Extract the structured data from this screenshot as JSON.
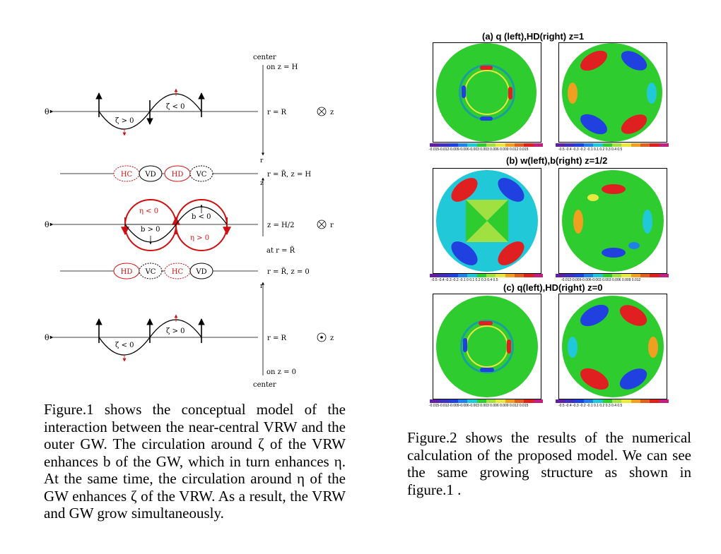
{
  "figure1": {
    "labels": {
      "center_top": "center",
      "on_z_H": "on z = H",
      "theta": "θ",
      "r_eq_R": "r = R",
      "z_axis": "z",
      "r_axis": "r",
      "zeta_pos": "ζ > 0",
      "zeta_neg": "ζ < 0",
      "r_Rt_z_H": "r = R̃, z = H",
      "r_Rt_z_0": "r = R̃, z = 0",
      "z_H2": "z = H/2",
      "at_r_Rt": "at r = R̃",
      "eta_neg": "η < 0",
      "eta_pos": "η > 0",
      "b_pos": "b > 0",
      "b_neg": "b < 0",
      "on_z_0": "on z = 0",
      "center_bottom": "center",
      "HC": "HC",
      "VD": "VD",
      "HD": "HD",
      "VC": "VC"
    }
  },
  "figure2": {
    "panel_a_title": "(a)  q  (left),HD(right)   z=1",
    "panel_b_title": "(b)  w(left),b(right)  z=1/2",
    "panel_c_title": "(c)  q(left),HD(right)  z=0",
    "ticks_q": "-0.015-0.012-0.009-0.006-0.003 0.003 0.006 0.009 0.012 0.015",
    "ticks_hd": "-0.5  -0.4  -0.3  -0.2  -0.1  0.1  0.2  0.3  0.4  0.5",
    "ticks_w": "-0.5  -0.4  -0.3  -0.2  -0.1   0   0.1  0.2  0.3  0.4  0.5",
    "ticks_b": "-0.012-0.009-0.006-0.003 0.003 0.006 0.009 0.012",
    "colors": {
      "green": "#2ecc2e",
      "red": "#e02020",
      "orange": "#f0a020",
      "yellow": "#e8e840",
      "cyan": "#20c8d8",
      "blue": "#2040e0",
      "purple": "#6020a0"
    }
  },
  "captions": {
    "fig1": "Figure.1 shows the conceptual model of the interaction between the near-central VRW and the outer GW. The circulation around ζ of the VRW enhances b of the GW, which in turn enhances η. At the same time, the circulation around η of the GW enhances ζ of the VRW. As a result, the VRW and GW grow simultaneously.",
    "fig2": "Figure.2 shows the results of the numerical calculation of the proposed model. We can see the same growing structure as shown in figure.1 ."
  }
}
